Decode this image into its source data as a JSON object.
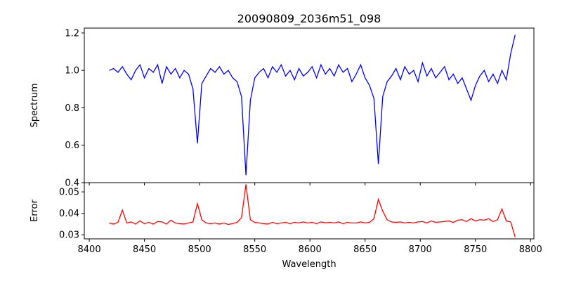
{
  "chart_data": [
    {
      "type": "line",
      "title": "20090809_2036m51_098",
      "xlabel": "",
      "ylabel": "Spectrum",
      "xlim": [
        8395.5,
        8803
      ],
      "ylim": [
        0.4,
        1.226
      ],
      "color": "#0000ff",
      "xticks": [
        "8400",
        "8450",
        "8500",
        "8550",
        "8600",
        "8650",
        "8700",
        "8750",
        "8800"
      ],
      "yticks": [
        "0.4",
        "0.6",
        "0.8",
        "1.0",
        "1.2"
      ],
      "x_start": 8418,
      "x_step": 4,
      "values": [
        1.0,
        1.01,
        0.99,
        1.02,
        0.98,
        0.95,
        1.0,
        1.03,
        0.96,
        1.01,
        0.99,
        1.03,
        0.93,
        1.02,
        0.98,
        1.01,
        0.96,
        1.0,
        0.98,
        0.9,
        0.61,
        0.93,
        0.97,
        1.01,
        0.99,
        1.02,
        0.98,
        1.0,
        0.96,
        0.94,
        0.86,
        0.44,
        0.84,
        0.96,
        0.99,
        1.01,
        0.96,
        1.02,
        0.99,
        1.03,
        0.97,
        1.0,
        0.95,
        1.01,
        0.97,
        0.99,
        1.02,
        0.96,
        1.03,
        0.98,
        1.01,
        0.97,
        1.03,
        0.99,
        1.01,
        0.94,
        0.98,
        1.03,
        0.96,
        0.92,
        0.85,
        0.5,
        0.86,
        0.94,
        0.97,
        1.01,
        0.95,
        1.02,
        0.98,
        1.0,
        0.94,
        1.04,
        0.97,
        1.01,
        0.96,
        0.99,
        1.02,
        0.95,
        0.98,
        0.93,
        0.96,
        0.9,
        0.84,
        0.92,
        0.97,
        1.0,
        0.94,
        0.98,
        0.93,
        1.0,
        0.95,
        1.09,
        1.19
      ]
    },
    {
      "type": "line",
      "title": "",
      "xlabel": "Wavelength",
      "ylabel": "Error",
      "xlim": [
        8395.5,
        8803
      ],
      "ylim": [
        0.0281,
        0.0543
      ],
      "color": "#ff0000",
      "xticks": [
        "8400",
        "8450",
        "8500",
        "8550",
        "8600",
        "8650",
        "8700",
        "8750",
        "8800"
      ],
      "yticks": [
        "0.03",
        "0.04",
        "0.05"
      ],
      "x_start": 8418,
      "x_step": 4,
      "values": [
        0.0355,
        0.035,
        0.0358,
        0.0415,
        0.0355,
        0.036,
        0.035,
        0.0365,
        0.0352,
        0.0358,
        0.035,
        0.0362,
        0.036,
        0.035,
        0.0368,
        0.0355,
        0.0352,
        0.035,
        0.0355,
        0.036,
        0.0445,
        0.037,
        0.0355,
        0.0352,
        0.0355,
        0.035,
        0.0355,
        0.0348,
        0.0352,
        0.0358,
        0.038,
        0.0535,
        0.037,
        0.0358,
        0.0355,
        0.0352,
        0.035,
        0.0358,
        0.0352,
        0.0355,
        0.0358,
        0.0352,
        0.0358,
        0.0355,
        0.036,
        0.0355,
        0.0358,
        0.0352,
        0.036,
        0.0356,
        0.0358,
        0.0355,
        0.036,
        0.0352,
        0.0358,
        0.0355,
        0.0355,
        0.036,
        0.0355,
        0.0358,
        0.0375,
        0.0465,
        0.041,
        0.037,
        0.036,
        0.0358,
        0.036,
        0.0355,
        0.0358,
        0.0355,
        0.036,
        0.0362,
        0.0355,
        0.0365,
        0.0358,
        0.036,
        0.0362,
        0.0365,
        0.0358,
        0.0368,
        0.037,
        0.0362,
        0.0375,
        0.0365,
        0.037,
        0.0368,
        0.0375,
        0.0362,
        0.037,
        0.042,
        0.0365,
        0.036,
        0.029
      ]
    }
  ]
}
